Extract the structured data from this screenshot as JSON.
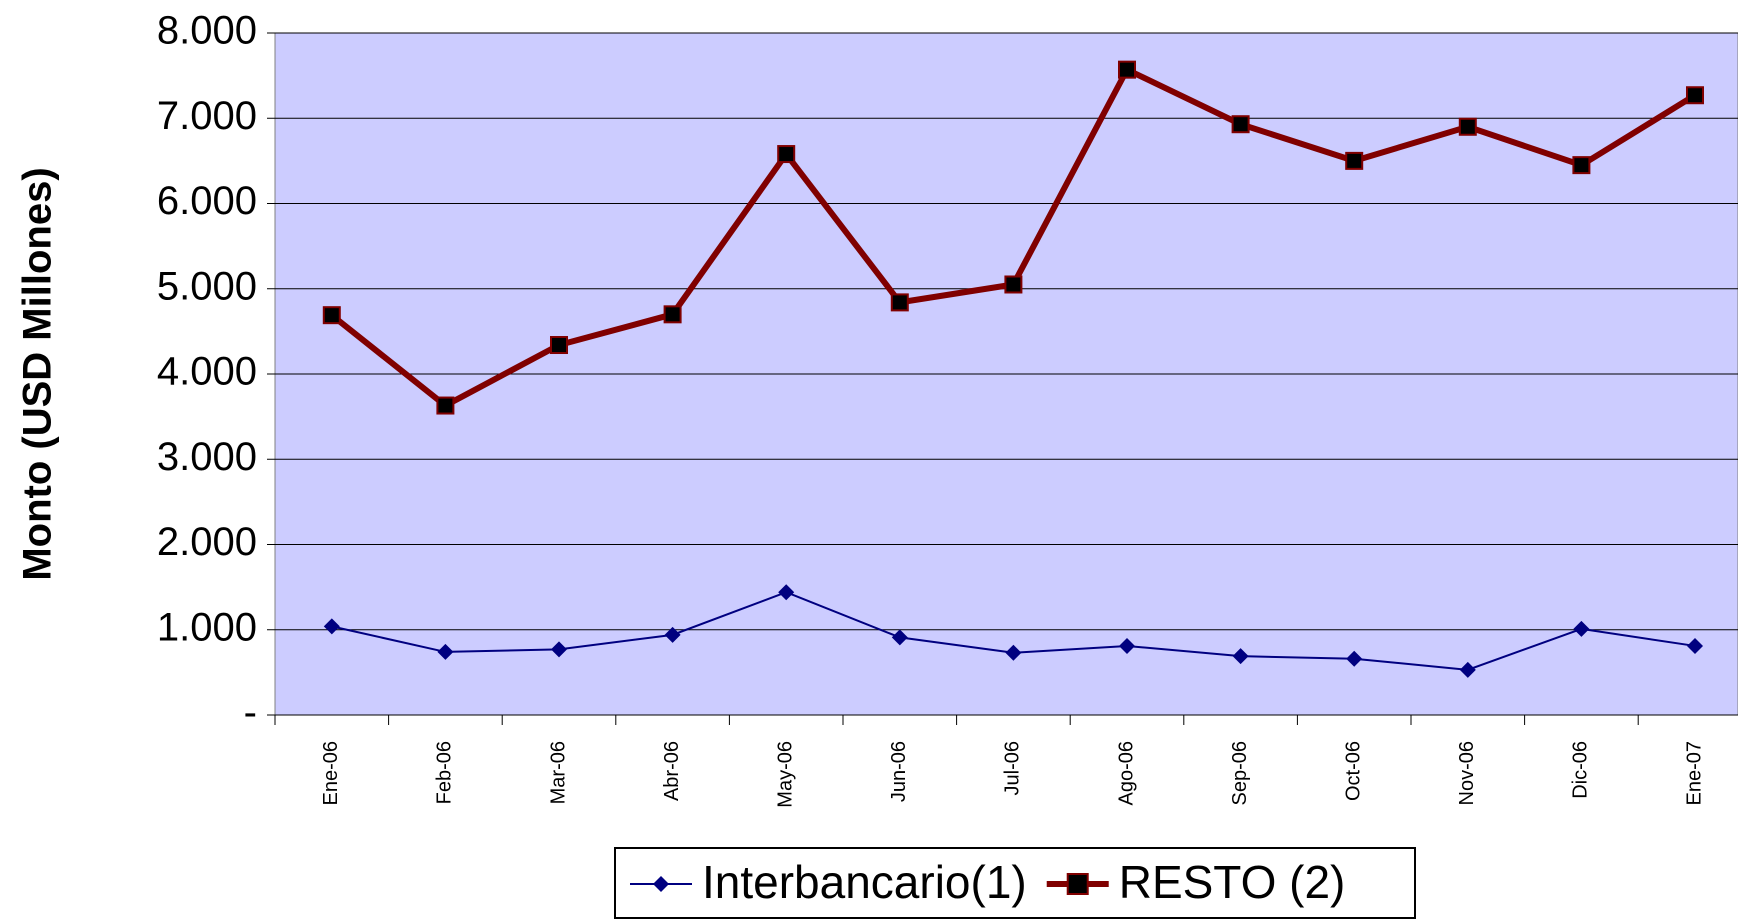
{
  "chart_data": {
    "type": "line",
    "y_label": "Monto (USD Millones)",
    "categories": [
      "Ene-06",
      "Feb-06",
      "Mar-06",
      "Abr-06",
      "May-06",
      "Jun-06",
      "Jul-06",
      "Ago-06",
      "Sep-06",
      "Oct-06",
      "Nov-06",
      "Dic-06",
      "Ene-07"
    ],
    "series": [
      {
        "name": "Interbancario(1)",
        "color": "#000080",
        "values": [
          1040,
          740,
          770,
          940,
          1440,
          910,
          730,
          810,
          690,
          660,
          530,
          1010,
          810
        ]
      },
      {
        "name": "RESTO (2)",
        "color": "#800000",
        "values": [
          4690,
          3630,
          4340,
          4700,
          6580,
          4840,
          5050,
          7570,
          6930,
          6500,
          6900,
          6450,
          7270
        ]
      }
    ],
    "ylim": [
      0,
      8000
    ],
    "yticks": [
      {
        "value": 0,
        "label": "-"
      },
      {
        "value": 1000,
        "label": "1.000"
      },
      {
        "value": 2000,
        "label": "2.000"
      },
      {
        "value": 3000,
        "label": "3.000"
      },
      {
        "value": 4000,
        "label": "4.000"
      },
      {
        "value": 5000,
        "label": "5.000"
      },
      {
        "value": 6000,
        "label": "6.000"
      },
      {
        "value": 7000,
        "label": "7.000"
      },
      {
        "value": 8000,
        "label": "8.000"
      }
    ],
    "grid": true,
    "plot_background": "#ccccff",
    "legend": "bottom"
  }
}
